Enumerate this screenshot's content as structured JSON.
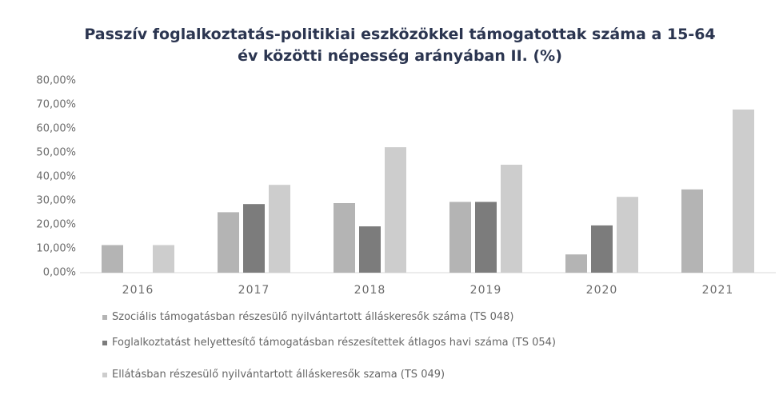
{
  "chart_data": {
    "type": "bar",
    "title": "Passzív foglalkoztatás-politikiai eszközökkel támogatottak száma a 15-64 év közötti népesség arányában II. (%)",
    "categories": [
      "2016",
      "2017",
      "2018",
      "2019",
      "2020",
      "2021"
    ],
    "series": [
      {
        "name": "Szociális támogatásban részesülő nyilvántartott álláskeresők száma (TS 048)",
        "color": "#b4b4b4",
        "values": [
          11.5,
          25.2,
          29,
          29.5,
          7.6,
          34.7
        ]
      },
      {
        "name": "Foglalkoztatást helyettesítő támogatásban részesítettek átlagos havi száma (TS 054)",
        "color": "#7c7c7c",
        "values": [
          null,
          28.6,
          19.3,
          29.5,
          19.7,
          null
        ]
      },
      {
        "name": "Ellátásban részesülő nyilvántartott álláskeresők szama (TS 049)",
        "color": "#cdcdcd",
        "values": [
          11.5,
          36.6,
          52.3,
          45,
          31.6,
          68
        ]
      }
    ],
    "ylim": [
      0,
      80
    ],
    "yticks": [
      {
        "value": 0,
        "label": "0,00%"
      },
      {
        "value": 10,
        "label": "10,00%"
      },
      {
        "value": 20,
        "label": "20,00%"
      },
      {
        "value": 30,
        "label": "30,00%"
      },
      {
        "value": 40,
        "label": "40,00%"
      },
      {
        "value": 50,
        "label": "50,00%"
      },
      {
        "value": 60,
        "label": "60,00%"
      },
      {
        "value": 70,
        "label": "70,00%"
      },
      {
        "value": 80,
        "label": "80,00%"
      }
    ],
    "grid": false
  }
}
